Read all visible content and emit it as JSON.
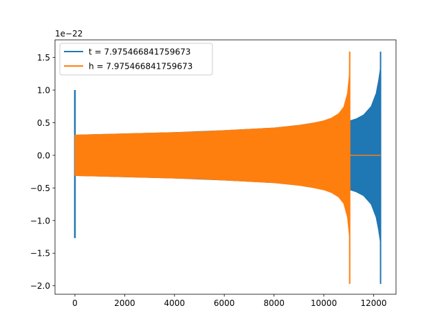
{
  "chart_data": {
    "type": "line",
    "title": "",
    "xlabel": "",
    "ylabel": "",
    "y_offset_label": "1e−22",
    "xlim": [
      -800,
      12900
    ],
    "ylim": [
      -2.13,
      1.77
    ],
    "x_ticks": [
      0,
      2000,
      4000,
      6000,
      8000,
      10000,
      12000
    ],
    "x_tick_labels": [
      "0",
      "2000",
      "4000",
      "6000",
      "8000",
      "10000",
      "12000"
    ],
    "y_ticks": [
      -2.0,
      -1.5,
      -1.0,
      -0.5,
      0.0,
      0.5,
      1.0,
      1.5
    ],
    "y_tick_labels": [
      "−2.0",
      "−1.5",
      "−1.0",
      "−0.5",
      "0.0",
      "0.5",
      "1.0",
      "1.5"
    ],
    "grid": false,
    "legend_position": "top-left",
    "series": [
      {
        "name": "t = 7.975466841759673",
        "color": "#1f77b4",
        "spike": {
          "x": 0,
          "max": 1.0,
          "min": -1.27
        },
        "envelope": {
          "x": [
            0,
            2000,
            4000,
            6000,
            8000,
            9000,
            10000,
            10500,
            10900,
            11050,
            11300,
            11600,
            11900,
            12100,
            12200,
            12270
          ],
          "upper": [
            0.31,
            0.33,
            0.35,
            0.38,
            0.42,
            0.46,
            0.52,
            0.56,
            0.63,
            0.53,
            0.56,
            0.62,
            0.75,
            0.95,
            1.15,
            1.33
          ],
          "lower": [
            -0.31,
            -0.33,
            -0.35,
            -0.38,
            -0.42,
            -0.46,
            -0.52,
            -0.56,
            -0.63,
            -0.53,
            -0.56,
            -0.62,
            -0.75,
            -0.95,
            -1.15,
            -1.33
          ]
        },
        "end_spike": {
          "x": 12280,
          "max": 1.59,
          "min": -1.97
        }
      },
      {
        "name": "h = 7.975466841759673",
        "color": "#ff7f0e",
        "envelope": {
          "x": [
            0,
            1000,
            2000,
            3000,
            4000,
            5000,
            6000,
            7000,
            8000,
            9000,
            9500,
            10000,
            10300,
            10600,
            10800,
            10950,
            11030
          ],
          "upper": [
            0.31,
            0.32,
            0.33,
            0.34,
            0.35,
            0.36,
            0.38,
            0.4,
            0.42,
            0.46,
            0.49,
            0.53,
            0.57,
            0.64,
            0.74,
            0.95,
            1.25
          ],
          "lower": [
            -0.31,
            -0.32,
            -0.33,
            -0.34,
            -0.35,
            -0.36,
            -0.38,
            -0.4,
            -0.42,
            -0.46,
            -0.49,
            -0.53,
            -0.57,
            -0.64,
            -0.74,
            -0.95,
            -1.25
          ]
        },
        "end_spike": {
          "x": 11040,
          "max": 1.59,
          "min": -1.97
        },
        "flat_tail": {
          "x": [
            11060,
            12280
          ],
          "y": 0.0
        }
      }
    ]
  }
}
